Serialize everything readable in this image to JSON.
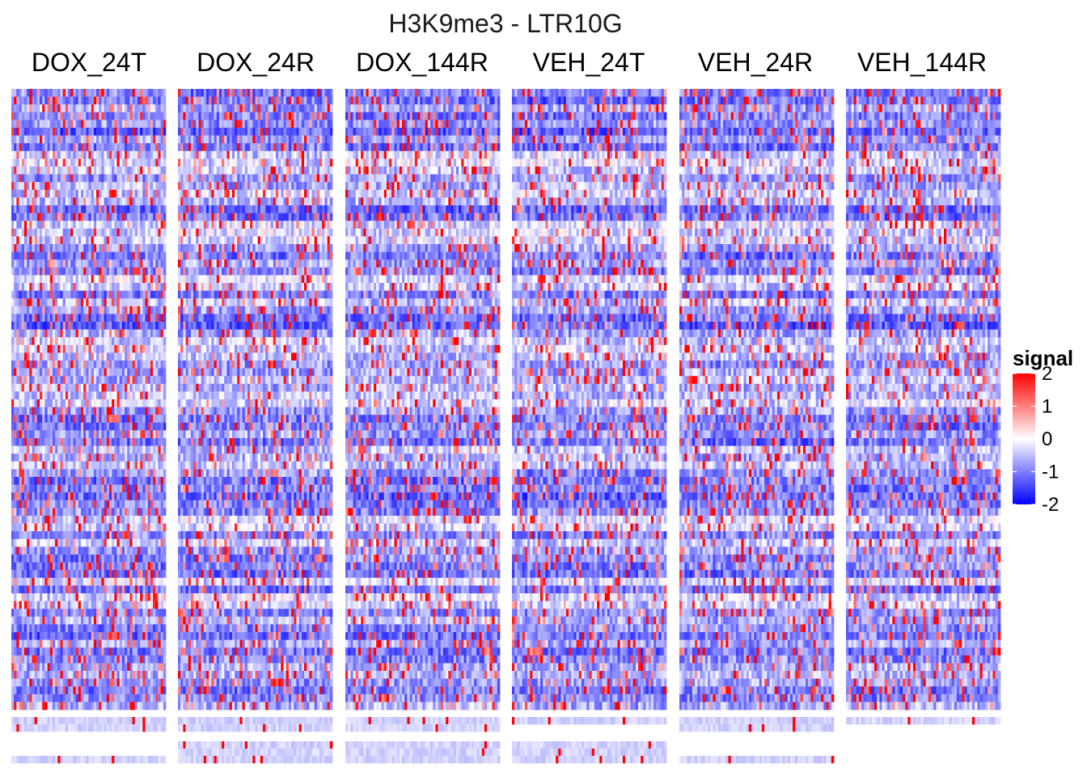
{
  "chart_data": {
    "type": "heatmap",
    "title": "H3K9me3 - LTR10G",
    "panels": [
      "DOX_24T",
      "DOX_24R",
      "DOX_144R",
      "VEH_24T",
      "VEH_24R",
      "VEH_144R"
    ],
    "xlabel": "",
    "ylabel": "",
    "legend": {
      "title": "signal",
      "ticks": [
        2,
        1,
        0,
        -1,
        -2
      ],
      "tick_labels": [
        "2",
        "1",
        "0",
        "-1",
        "-2"
      ],
      "range": [
        -2,
        2
      ],
      "colors": {
        "low": "#0000FF",
        "mid": "#FFFFFF",
        "high": "#FF0000"
      },
      "placement": "right"
    },
    "row_clusters": {
      "main_rows": 80,
      "small_cluster_counts": {
        "DOX_24T": [
          2,
          0,
          1
        ],
        "DOX_24R": [
          2,
          3,
          0
        ],
        "DOX_144R": [
          2,
          3,
          0
        ],
        "VEH_24T": [
          1,
          3,
          0
        ],
        "VEH_24R": [
          2,
          0,
          1
        ],
        "VEH_144R": [
          1,
          0,
          0
        ]
      }
    },
    "bins_per_panel": 60,
    "seed": 42
  }
}
